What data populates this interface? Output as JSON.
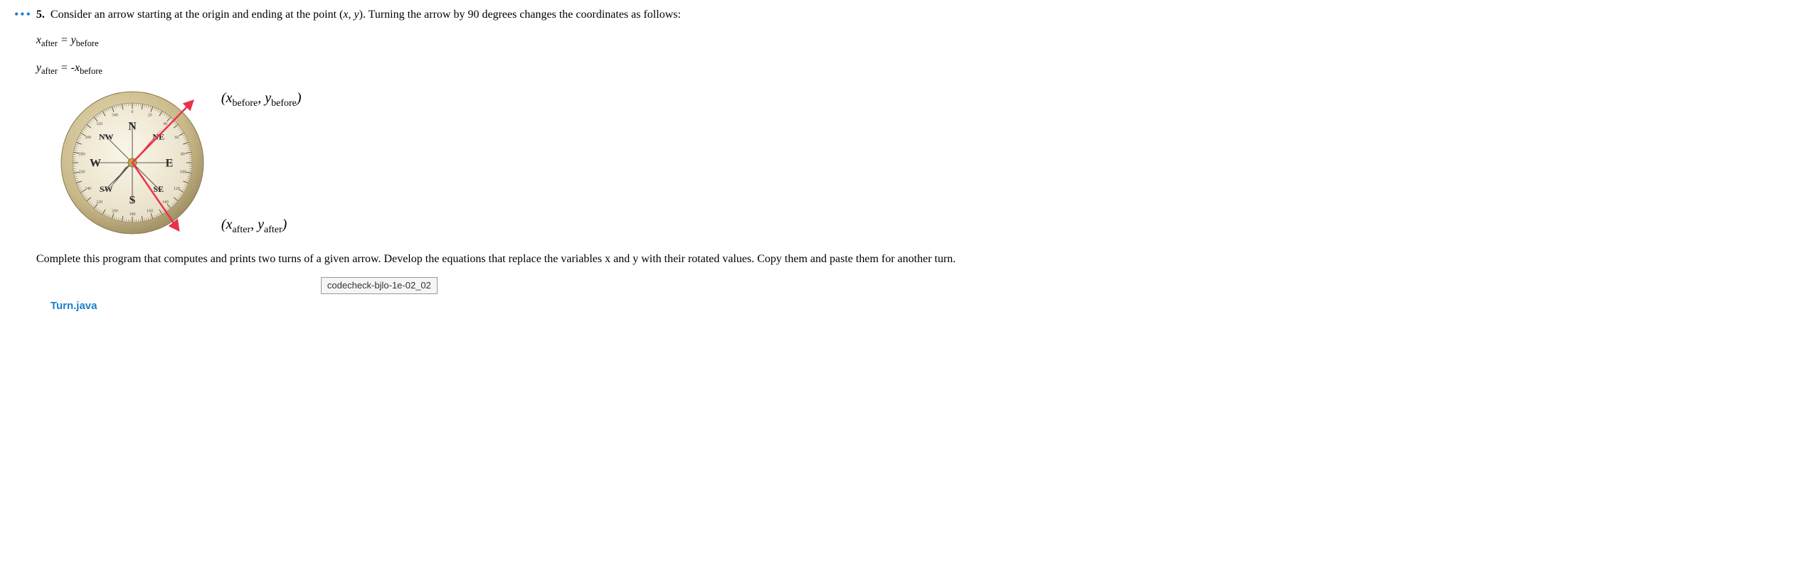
{
  "problem": {
    "dots": "•••",
    "number": "5.",
    "intro_before_xy": "Consider an arrow starting at the origin and ending at the point (",
    "intro_x": "x",
    "intro_comma": ", ",
    "intro_y": "y",
    "intro_after_xy": "). Turning the arrow by 90 degrees changes the coordinates as follows:",
    "eq1": {
      "lhs_var": "x",
      "lhs_sub": "after",
      "eq": " = ",
      "rhs_var": "y",
      "rhs_sub": "before"
    },
    "eq2": {
      "lhs_var": "y",
      "lhs_sub": "after",
      "eq": " = -",
      "rhs_var": "x",
      "rhs_sub": "before"
    },
    "figure": {
      "before_label": {
        "open": "(",
        "x": "x",
        "xsub": "before",
        "comma": ", ",
        "y": "y",
        "ysub": "before",
        "close": ")"
      },
      "after_label": {
        "open": "(",
        "x": "x",
        "xsub": "after",
        "comma": ", ",
        "y": "y",
        "ysub": "after",
        "close": ")"
      },
      "compass": {
        "rim_outer": "#b8a878",
        "rim_inner": "#d8c8a0",
        "face": "#f0ead6",
        "tick_color": "#5a5040",
        "cardinal_color": "#2a2a2a",
        "needle_red": "#d42a3a",
        "needle_grey": "#5a5a5a",
        "hub": "#c0a050",
        "arrow_red": "#e8334a",
        "dirs": {
          "N": "N",
          "NE": "NE",
          "E": "E",
          "SE": "SE",
          "S": "S",
          "SW": "SW",
          "W": "W",
          "NW": "NW"
        },
        "deg_labels": [
          "0",
          "20",
          "40",
          "60",
          "80",
          "100",
          "120",
          "140",
          "160",
          "180",
          "200",
          "220",
          "240",
          "260",
          "280",
          "300",
          "320",
          "340"
        ]
      }
    },
    "instruction": "Complete this program that computes and prints two turns of a given arrow. Develop the equations that replace the variables x and y with their rotated values. Copy them and paste them for another turn.",
    "codecheck": "codecheck-bjlo-1e-02_02",
    "filename": "Turn.java"
  }
}
